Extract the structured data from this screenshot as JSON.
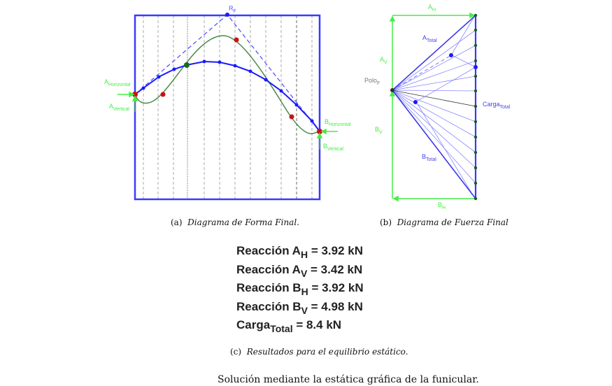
{
  "figure_a": {
    "caption_prefix": "(a)",
    "caption": "Diagrama de Forma Final.",
    "labels": {
      "rf": "R",
      "rf_sub": "F",
      "ah": "A",
      "ah_sub": "Horizontal",
      "av": "A",
      "av_sub": "Vertical",
      "bh": "B",
      "bh_sub": "Horizontal",
      "bv": "B",
      "bv_sub": "Vertical"
    }
  },
  "figure_b": {
    "caption_prefix": "(b)",
    "caption": "Diagrama de Fuerza Final",
    "labels": {
      "ah": "A",
      "ah_sub": "H",
      "av": "A",
      "av_sub": "V",
      "bv": "B",
      "bv_sub": "V",
      "bh": "B",
      "bh_sub": "H",
      "pole": "Polo",
      "pole_sub": "F",
      "atotal": "A",
      "atotal_sub": "Total",
      "btotal": "B",
      "btotal_sub": "Total",
      "carga": "Carga",
      "carga_sub": "Total"
    }
  },
  "results": [
    {
      "label": "Reacción A",
      "sub": "H",
      "value": " = 3.92 kN"
    },
    {
      "label": "Reacción A",
      "sub": "V",
      "value": " = 3.42 kN"
    },
    {
      "label": "Reacción B",
      "sub": "H",
      "value": " = 3.92 kN"
    },
    {
      "label": "Reacción B",
      "sub": "V",
      "value": " = 4.98 kN"
    },
    {
      "label": "Carga",
      "sub": "Total",
      "value": " = 8.4 kN"
    }
  ],
  "figure_c": {
    "caption_prefix": "(c)",
    "caption": "Resultados para el equilibrio estático."
  },
  "main_caption": "Solución mediante la estática gráfica de la funicular.",
  "colors": {
    "blue": "#1a1aff",
    "green": "#44ee44",
    "curve": "#4a8a4a",
    "red": "#cc1111"
  }
}
